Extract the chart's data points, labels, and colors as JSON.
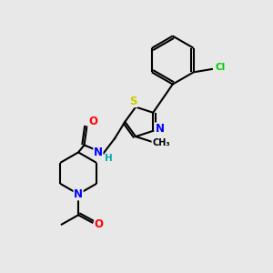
{
  "background_color": "#e8e8e8",
  "bond_color": "#000000",
  "atom_colors": {
    "N": "#0000ff",
    "O": "#ff0000",
    "S": "#cccc00",
    "Cl": "#00cc00",
    "C": "#000000",
    "H": "#00aaaa"
  },
  "figsize": [
    3.0,
    3.0
  ],
  "dpi": 100
}
